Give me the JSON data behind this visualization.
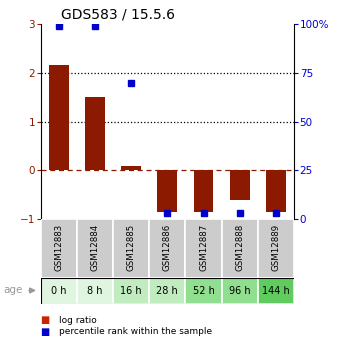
{
  "title": "GDS583 / 15.5.6",
  "categories": [
    "GSM12883",
    "GSM12884",
    "GSM12885",
    "GSM12886",
    "GSM12887",
    "GSM12888",
    "GSM12889"
  ],
  "age_labels": [
    "0 h",
    "8 h",
    "16 h",
    "28 h",
    "52 h",
    "96 h",
    "144 h"
  ],
  "log_ratio": [
    2.17,
    1.5,
    0.08,
    -0.85,
    -0.85,
    -0.6,
    -0.85
  ],
  "percentile_rank": [
    99,
    99,
    70,
    3,
    3,
    3,
    3
  ],
  "bar_color": "#8B1A00",
  "dot_color": "#0000CC",
  "ylim_left": [
    -1,
    3
  ],
  "ylim_right": [
    0,
    100
  ],
  "yticks_left": [
    -1,
    0,
    1,
    2,
    3
  ],
  "yticks_right": [
    0,
    25,
    50,
    75,
    100
  ],
  "ytick_labels_right": [
    "0",
    "25",
    "50",
    "75",
    "100%"
  ],
  "hline_dashed_red": 0,
  "hlines_dotted": [
    1,
    2
  ],
  "age_colors": [
    "#e0f5e0",
    "#e0f5e0",
    "#c0ecc0",
    "#c0ecc0",
    "#90de90",
    "#90de90",
    "#60cc60"
  ],
  "gsm_bg_color": "#cccccc",
  "legend_items": [
    "log ratio",
    "percentile rank within the sample"
  ],
  "legend_colors": [
    "#CC2200",
    "#0000CC"
  ],
  "bar_width": 0.55
}
